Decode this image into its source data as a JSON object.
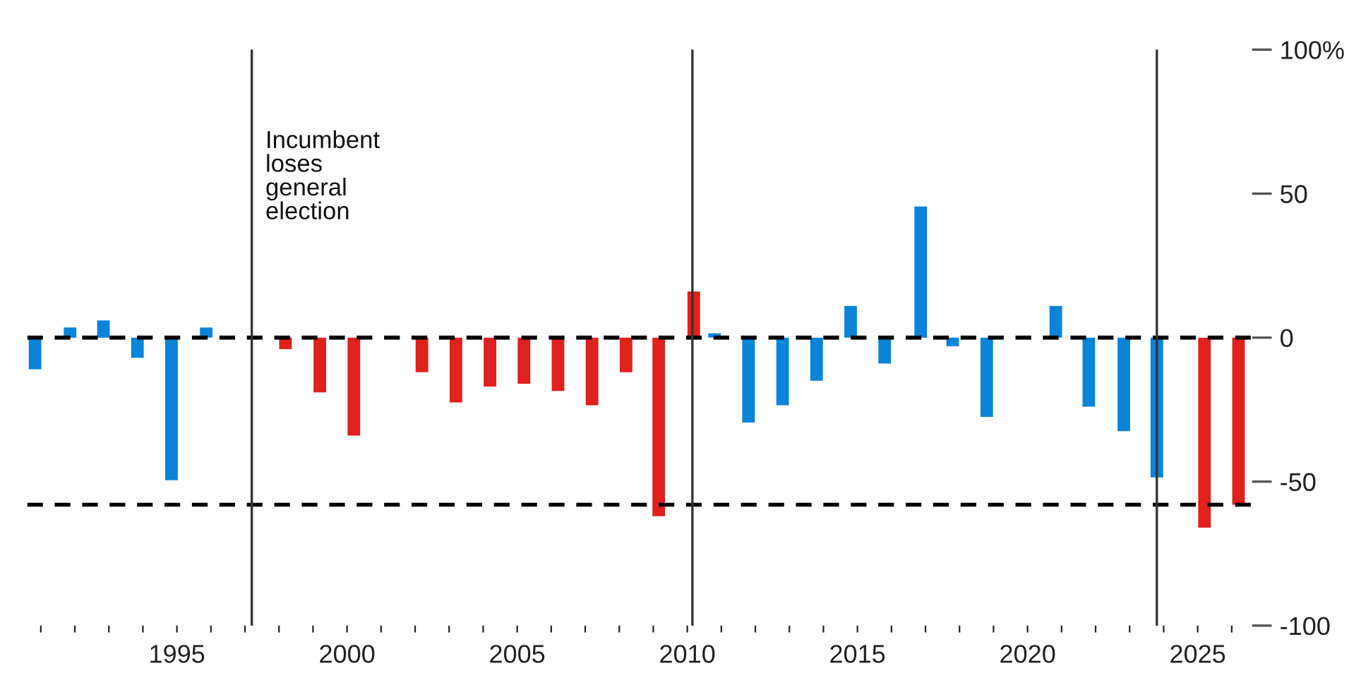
{
  "chart_data": {
    "type": "bar",
    "x": [
      1990.83,
      1991.86,
      1992.84,
      1993.84,
      1994.84,
      1995.86,
      1998.19,
      1999.2,
      2000.2,
      2001.2,
      2002.2,
      2003.2,
      2004.2,
      2005.2,
      2006.2,
      2007.2,
      2008.2,
      2009.16,
      2010.19,
      2010.8,
      2011.8,
      2012.8,
      2013.8,
      2014.8,
      2015.8,
      2016.86,
      2017.8,
      2018.8,
      2020.83,
      2021.8,
      2022.83,
      2023.8,
      2025.2,
      2026.2
    ],
    "values": [
      -11,
      3.5,
      6,
      -7,
      -49.5,
      3.5,
      -4,
      -19,
      -34,
      null,
      -12,
      -22.5,
      -17,
      -16,
      -18.5,
      -23.5,
      -12,
      -62,
      16,
      1.5,
      -29.5,
      -23.5,
      -15,
      11,
      -9,
      45.5,
      -3,
      -27.5,
      11,
      -24,
      -32.5,
      -48.5,
      -66,
      -58
    ],
    "colors": [
      "#0a84d8",
      "#0a84d8",
      "#0a84d8",
      "#0a84d8",
      "#0a84d8",
      "#0a84d8",
      "#e0211c",
      "#e0211c",
      "#e0211c",
      "#e0211c",
      "#e0211c",
      "#e0211c",
      "#e0211c",
      "#e0211c",
      "#e0211c",
      "#e0211c",
      "#e0211c",
      "#e0211c",
      "#e0211c",
      "#0a84d8",
      "#0a84d8",
      "#0a84d8",
      "#0a84d8",
      "#0a84d8",
      "#0a84d8",
      "#0a84d8",
      "#0a84d8",
      "#0a84d8",
      "#0a84d8",
      "#0a84d8",
      "#0a84d8",
      "#0a84d8",
      "#e0211c",
      "#e0211c"
    ],
    "xlim": [
      1990.6,
      2026.6
    ],
    "xticks": [
      {
        "value": 1991,
        "label": null
      },
      {
        "value": 1992,
        "label": null
      },
      {
        "value": 1993,
        "label": null
      },
      {
        "value": 1994,
        "label": null
      },
      1995,
      {
        "value": 1996,
        "label": null
      },
      {
        "value": 1997,
        "label": null
      },
      {
        "value": 1998,
        "label": null
      },
      {
        "value": 1999,
        "label": null
      },
      2000,
      {
        "value": 2001,
        "label": null
      },
      {
        "value": 2002,
        "label": null
      },
      {
        "value": 2003,
        "label": null
      },
      {
        "value": 2004,
        "label": null
      },
      2005,
      {
        "value": 2006,
        "label": null
      },
      {
        "value": 2007,
        "label": null
      },
      {
        "value": 2008,
        "label": null
      },
      {
        "value": 2009,
        "label": null
      },
      2010,
      {
        "value": 2011,
        "label": null
      },
      {
        "value": 2012,
        "label": null
      },
      {
        "value": 2013,
        "label": null
      },
      {
        "value": 2014,
        "label": null
      },
      2015,
      {
        "value": 2016,
        "label": null
      },
      {
        "value": 2017,
        "label": null
      },
      {
        "value": 2018,
        "label": null
      },
      {
        "value": 2019,
        "label": null
      },
      2020,
      {
        "value": 2021,
        "label": null
      },
      {
        "value": 2022,
        "label": null
      },
      {
        "value": 2023,
        "label": null
      },
      {
        "value": 2024,
        "label": null
      },
      2025,
      {
        "value": 2026,
        "label": null
      }
    ],
    "ylim": [
      -100,
      100
    ],
    "yticks": [
      {
        "value": 100,
        "label": "100%"
      },
      50,
      0,
      -50,
      -100
    ],
    "ref_lines": [
      {
        "axis": "y",
        "value": 0,
        "color": "#000000",
        "line_style": "dashed"
      },
      {
        "axis": "y",
        "value": -58,
        "color": "#000000",
        "line_style": "dashed"
      },
      {
        "axis": "x",
        "value": 1997.2,
        "color": "#333333",
        "line_style": "solid"
      },
      {
        "axis": "x",
        "value": 2010.15,
        "color": "#333333",
        "line_style": "solid"
      },
      {
        "axis": "x",
        "value": 2023.8,
        "color": "#333333",
        "line_style": "solid"
      }
    ],
    "annotations": [
      "Incumbent\nloses\ngeneral\nelection"
    ],
    "grid": false,
    "legend": false
  }
}
